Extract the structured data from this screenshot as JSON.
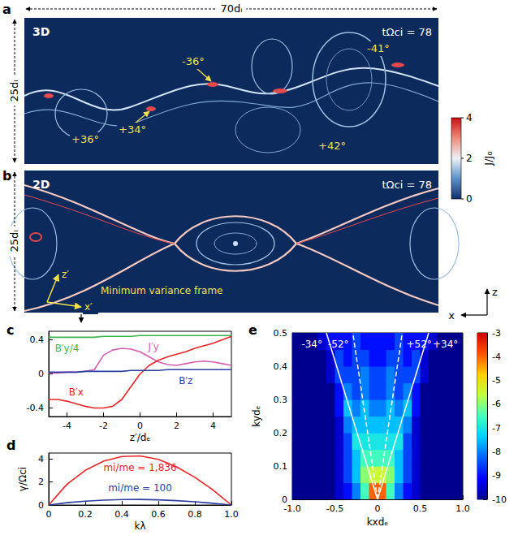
{
  "panels": [
    {
      "panel": "a",
      "label": "3D",
      "time": "tΩci = 78",
      "width": "70dᵢ",
      "height": "25dᵢ",
      "angles": [
        "+36°",
        "+34°",
        "-36°",
        "-41°",
        "+42°"
      ]
    },
    {
      "panel": "b",
      "label": "2D",
      "time": "tΩci = 78",
      "height": "25dᵢ",
      "frame": "Minimum variance frame",
      "frame_axes": [
        "z′",
        "x′"
      ],
      "axes": [
        "z",
        "x"
      ]
    }
  ],
  "colorbar": {
    "title": "J/J₀",
    "range": [
      0,
      4
    ],
    "ticks": [
      0,
      2,
      4
    ]
  },
  "chart_data": [
    {
      "panel": "c",
      "type": "line",
      "xlabel": "z′/dₑ",
      "grid": false,
      "xlim": [
        -5,
        5
      ],
      "xticks": [
        -4,
        -2,
        0,
        2,
        4
      ],
      "ylim": [
        -0.5,
        0.5
      ],
      "yticks": [
        -0.4,
        0,
        0.4
      ],
      "x": [
        -5,
        -4.5,
        -4,
        -3.5,
        -3,
        -2.5,
        -2,
        -1.5,
        -1,
        -0.5,
        0,
        0.5,
        1,
        1.5,
        2,
        2.5,
        3,
        3.5,
        4,
        4.5,
        5
      ],
      "series": [
        {
          "name": "B′y/4",
          "color": "#3cb44b",
          "values": [
            0.43,
            0.43,
            0.43,
            0.43,
            0.43,
            0.43,
            0.44,
            0.44,
            0.44,
            0.44,
            0.45,
            0.45,
            0.45,
            0.45,
            0.45,
            0.45,
            0.45,
            0.45,
            0.45,
            0.45,
            0.45
          ]
        },
        {
          "name": "J′y",
          "color": "#d45fb0",
          "values": [
            0.01,
            0.01,
            0.02,
            0.02,
            0.03,
            0.05,
            0.22,
            0.28,
            0.3,
            0.29,
            0.26,
            0.2,
            0.14,
            0.11,
            0.1,
            0.12,
            0.14,
            0.15,
            0.14,
            0.12,
            0.1
          ]
        },
        {
          "name": "B′x",
          "color": "#e8262a",
          "values": [
            -0.3,
            -0.3,
            -0.32,
            -0.35,
            -0.38,
            -0.4,
            -0.4,
            -0.38,
            -0.3,
            -0.15,
            0,
            0.1,
            0.16,
            0.2,
            0.23,
            0.26,
            0.3,
            0.33,
            0.36,
            0.4,
            0.44
          ]
        },
        {
          "name": "B′z",
          "color": "#2a3f9f",
          "values": [
            0.02,
            0.02,
            0.02,
            0.02,
            0.03,
            0.03,
            0.03,
            0.03,
            0.03,
            0.04,
            0.04,
            0.04,
            0.04,
            0.05,
            0.05,
            0.05,
            0.05,
            0.05,
            0.05,
            0.05,
            0.05
          ]
        }
      ]
    },
    {
      "panel": "d",
      "type": "line",
      "xlabel": "kλ",
      "ylabel": "γ/Ωci",
      "grid": false,
      "xlim": [
        0,
        1
      ],
      "xticks": [
        0,
        0.2,
        0.4,
        0.6,
        0.8,
        {
          "value": 1,
          "label": "1.0"
        }
      ],
      "ylim": [
        0,
        4.5
      ],
      "yticks": [
        0,
        2,
        4
      ],
      "x": [
        0,
        0.1,
        0.2,
        0.3,
        0.4,
        0.5,
        0.6,
        0.7,
        0.8,
        0.9,
        1
      ],
      "series": [
        {
          "name": "mi/me = 1,836",
          "color": "#e8262a",
          "values": [
            0,
            1.8,
            3.0,
            3.8,
            4.2,
            4.25,
            3.95,
            3.3,
            2.4,
            1.3,
            0
          ]
        },
        {
          "name": "mi/me = 100",
          "color": "#2a3f9f",
          "values": [
            0,
            0.2,
            0.33,
            0.42,
            0.47,
            0.48,
            0.45,
            0.38,
            0.28,
            0.15,
            0
          ]
        }
      ]
    },
    {
      "panel": "e",
      "type": "heatmap",
      "xlabel": "kxdₑ",
      "ylabel": "kydₑ",
      "grid": false,
      "xlim": [
        -1,
        1
      ],
      "xticks": [
        {
          "value": -1,
          "label": "-1.0"
        },
        -0.5,
        0,
        0.5,
        {
          "value": 1,
          "label": "1.0"
        }
      ],
      "ylim": [
        0,
        0.5
      ],
      "yticks": [
        0,
        0.1,
        0.2,
        0.3,
        0.4,
        0.5
      ],
      "x": [
        -0.95,
        -0.85,
        -0.75,
        -0.65,
        -0.55,
        -0.45,
        -0.35,
        -0.25,
        -0.15,
        -0.05,
        0.05,
        0.15,
        0.25,
        0.35,
        0.45,
        0.55,
        0.65,
        0.75,
        0.85,
        0.95
      ],
      "y": [
        0.025,
        0.075,
        0.125,
        0.175,
        0.225,
        0.275,
        0.325,
        0.375,
        0.425,
        0.475
      ],
      "values": [
        [
          -10,
          -10,
          -10,
          -10,
          -10,
          -9.5,
          -9,
          -8,
          -6.5,
          -4,
          -4,
          -6.5,
          -8,
          -9,
          -9.5,
          -10,
          -10,
          -10,
          -10,
          -10
        ],
        [
          -10,
          -10,
          -10,
          -10,
          -10,
          -9.5,
          -8.5,
          -7.5,
          -6,
          -5.5,
          -5.5,
          -6,
          -7.5,
          -8.5,
          -9.5,
          -10,
          -10,
          -10,
          -10,
          -10
        ],
        [
          -10,
          -10,
          -10,
          -10,
          -10,
          -9.5,
          -8.5,
          -7.5,
          -6.5,
          -6.5,
          -6.5,
          -6.5,
          -7.5,
          -8.5,
          -9.5,
          -10,
          -10,
          -10,
          -10,
          -10
        ],
        [
          -10,
          -10,
          -10,
          -10,
          -10,
          -9.5,
          -8.5,
          -7,
          -7,
          -7,
          -7,
          -7,
          -7,
          -8.5,
          -9.5,
          -10,
          -10,
          -10,
          -10,
          -10
        ],
        [
          -10,
          -10,
          -10,
          -10,
          -10,
          -9.5,
          -8,
          -7.5,
          -7.5,
          -7.5,
          -7.5,
          -7.5,
          -7.5,
          -8,
          -9.5,
          -10,
          -10,
          -10,
          -10,
          -10
        ],
        [
          -10,
          -10,
          -10,
          -10,
          -10,
          -9,
          -7.5,
          -8,
          -7.5,
          -8,
          -8,
          -7.5,
          -8,
          -7.5,
          -9,
          -10,
          -10,
          -10,
          -10,
          -10
        ],
        [
          -10,
          -10,
          -10,
          -10,
          -10,
          -9,
          -8,
          -8.5,
          -8,
          -8.5,
          -8.5,
          -8,
          -8.5,
          -8,
          -9,
          -10,
          -10,
          -10,
          -10,
          -10
        ],
        [
          -10,
          -10,
          -10,
          -10,
          -9.5,
          -8.5,
          -8.5,
          -8.5,
          -8,
          -8.5,
          -8.5,
          -8,
          -8.5,
          -8.5,
          -8.5,
          -9.5,
          -10,
          -10,
          -10,
          -10
        ],
        [
          -10,
          -10,
          -10,
          -10,
          -9.5,
          -8.5,
          -9,
          -8.5,
          -8.5,
          -9,
          -9,
          -8.5,
          -8.5,
          -9,
          -8.5,
          -9.5,
          -10,
          -10,
          -10,
          -10
        ],
        [
          -10,
          -10,
          -10,
          -9.5,
          -9,
          -9,
          -9,
          -8.5,
          -9,
          -9,
          -9,
          -9,
          -8.5,
          -9,
          -9,
          -9,
          -9.5,
          -10,
          -10,
          -10
        ]
      ],
      "color_range": [
        -10,
        -3
      ],
      "color_ticks": [
        -3,
        -4,
        -5,
        -6,
        -7,
        -8,
        -9,
        -10
      ],
      "lines": [
        {
          "label": "-34°",
          "x": [
            0,
            -0.6
          ],
          "y": [
            0,
            0.5
          ],
          "line_style": "solid"
        },
        {
          "label": "+34°",
          "x": [
            0,
            0.6
          ],
          "y": [
            0,
            0.5
          ],
          "line_style": "solid"
        },
        {
          "label": "-52°",
          "x": [
            0,
            -0.29
          ],
          "y": [
            0,
            0.5
          ],
          "line_style": "dashed"
        },
        {
          "label": "+52°",
          "x": [
            0,
            0.29
          ],
          "y": [
            0,
            0.5
          ],
          "line_style": "dashed"
        }
      ]
    }
  ]
}
